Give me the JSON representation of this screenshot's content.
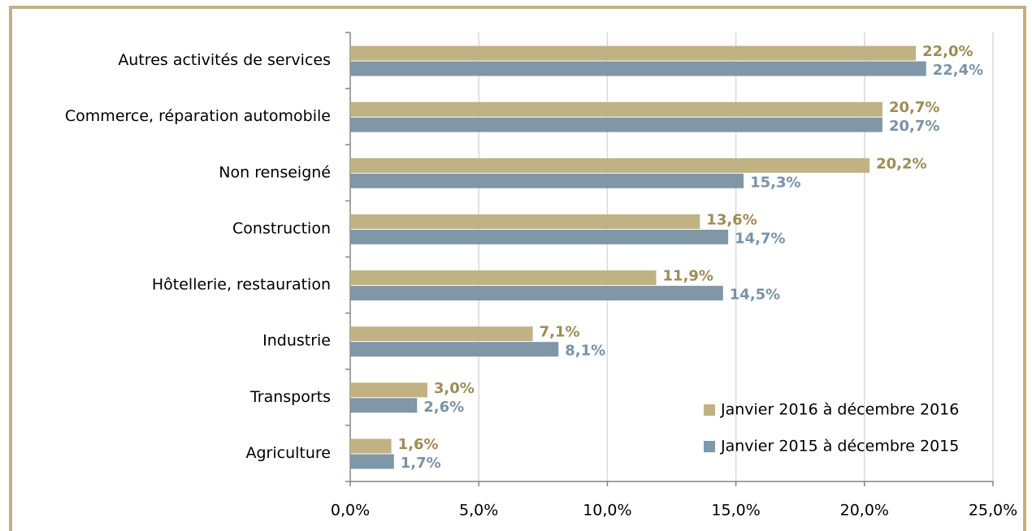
{
  "chart_data": {
    "type": "bar",
    "orientation": "horizontal",
    "categories": [
      "Autres activités de services",
      "Commerce, réparation automobile",
      "Non renseigné",
      "Construction",
      "Hôtellerie, restauration",
      "Industrie",
      "Transports",
      "Agriculture"
    ],
    "series": [
      {
        "name": "Janvier 2016 à décembre 2016",
        "color": "#c0b283",
        "label_color": "#9e8c54",
        "values": [
          22.0,
          20.7,
          20.2,
          13.6,
          11.9,
          7.1,
          3.0,
          1.6
        ],
        "value_labels": [
          "22,0%",
          "20,7%",
          "20,2%",
          "13,6%",
          "11,9%",
          "7,1%",
          "3,0%",
          "1,6%"
        ]
      },
      {
        "name": "Janvier 2015 à décembre 2015",
        "color": "#7f97a6",
        "label_color": "#7a92a6",
        "values": [
          22.4,
          20.7,
          15.3,
          14.7,
          14.5,
          8.1,
          2.6,
          1.7
        ],
        "value_labels": [
          "22,4%",
          "20,7%",
          "15,3%",
          "14,7%",
          "14,5%",
          "8,1%",
          "2,6%",
          "1,7%"
        ]
      }
    ],
    "xlim": [
      0,
      25
    ],
    "xticks": [
      {
        "value": 0,
        "label": "0,0%"
      },
      {
        "value": 5,
        "label": "5,0%"
      },
      {
        "value": 10,
        "label": "10,0%"
      },
      {
        "value": 15,
        "label": "15,0%"
      },
      {
        "value": 20,
        "label": "20,0%"
      },
      {
        "value": 25,
        "label": "25,0%"
      }
    ],
    "grid": true,
    "legend": "lower right"
  }
}
